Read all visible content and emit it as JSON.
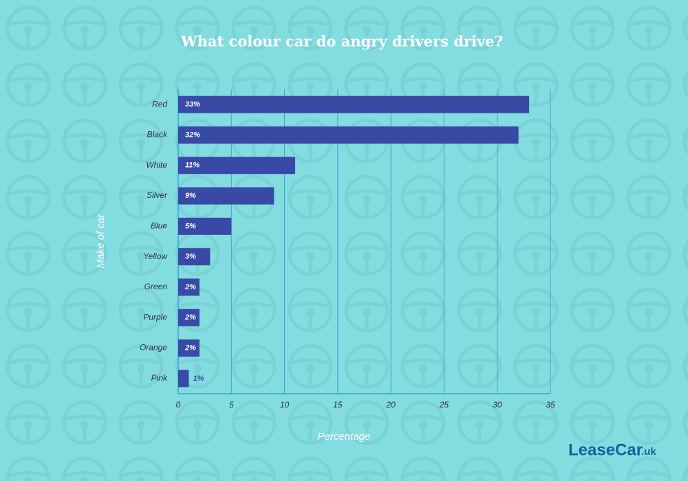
{
  "chart_data": {
    "type": "bar",
    "orientation": "horizontal",
    "title": "What colour car do angry drivers drive?",
    "x_label": "Percentage",
    "y_label": "Make of car",
    "categories": [
      "Red",
      "Black",
      "White",
      "Silver",
      "Blue",
      "Yellow",
      "Green",
      "Purple",
      "Orange",
      "Pink"
    ],
    "values": [
      33,
      32,
      11,
      9,
      5,
      3,
      2,
      2,
      2,
      1
    ],
    "value_labels": [
      "33%",
      "32%",
      "11%",
      "9%",
      "5%",
      "3%",
      "2%",
      "2%",
      "2%",
      "1%"
    ],
    "color": "#3949a6",
    "xlim": [
      0,
      35
    ],
    "xticks": [
      0,
      5,
      10,
      15,
      20,
      25,
      30,
      35
    ],
    "grid": true
  },
  "logo": {
    "name": "LeaseCar",
    "suffix": ".uk"
  }
}
